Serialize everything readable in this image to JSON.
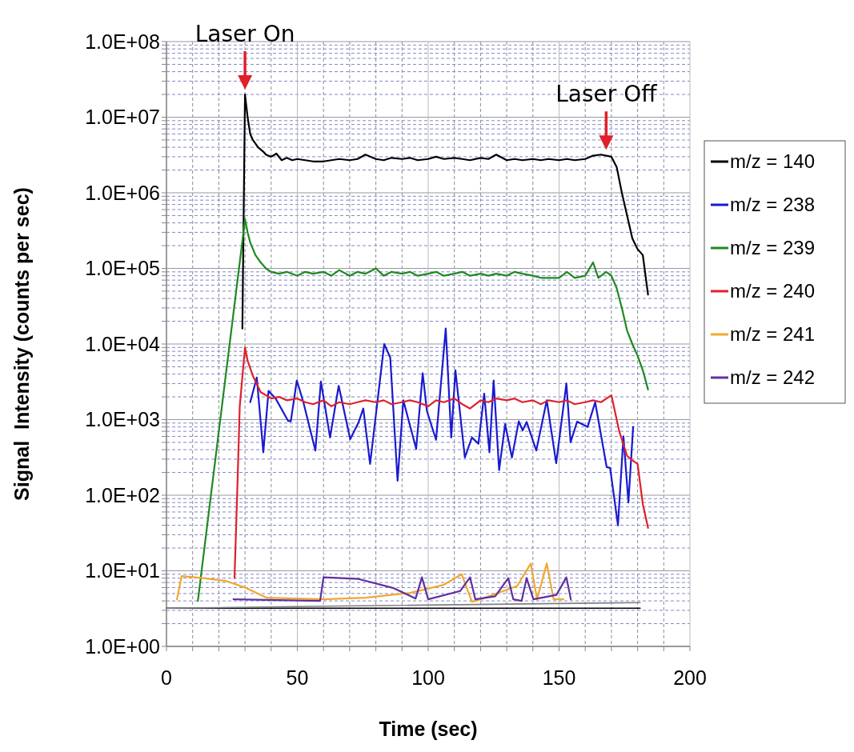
{
  "chart_data": {
    "type": "line",
    "xlabel": "Time (sec)",
    "ylabel": "Signal  Intensity (counts per sec)",
    "xlim": [
      0,
      200
    ],
    "xticks": [
      0,
      {
        "value": 10,
        "label": null
      },
      {
        "value": 20,
        "label": null
      },
      {
        "value": 30,
        "label": null
      },
      {
        "value": 40,
        "label": null
      },
      50,
      {
        "value": 60,
        "label": null
      },
      {
        "value": 70,
        "label": null
      },
      {
        "value": 80,
        "label": null
      },
      {
        "value": 90,
        "label": null
      },
      100,
      {
        "value": 110,
        "label": null
      },
      {
        "value": 120,
        "label": null
      },
      {
        "value": 130,
        "label": null
      },
      {
        "value": 140,
        "label": null
      },
      150,
      {
        "value": 160,
        "label": null
      },
      {
        "value": 170,
        "label": null
      },
      {
        "value": 180,
        "label": null
      },
      {
        "value": 190,
        "label": null
      },
      200
    ],
    "ylim": [
      1,
      100000000
    ],
    "yticks": [
      {
        "value": 1,
        "label": "1.0E+00"
      },
      {
        "value": 2,
        "label": null
      },
      {
        "value": 3,
        "label": null
      },
      {
        "value": 4,
        "label": null
      },
      {
        "value": 5,
        "label": null
      },
      {
        "value": 6,
        "label": null
      },
      {
        "value": 7,
        "label": null
      },
      {
        "value": 8,
        "label": null
      },
      {
        "value": 9,
        "label": null
      },
      {
        "value": 10,
        "label": "1.0E+01"
      },
      {
        "value": 20,
        "label": null
      },
      {
        "value": 30,
        "label": null
      },
      {
        "value": 40,
        "label": null
      },
      {
        "value": 50,
        "label": null
      },
      {
        "value": 60,
        "label": null
      },
      {
        "value": 70,
        "label": null
      },
      {
        "value": 80,
        "label": null
      },
      {
        "value": 90,
        "label": null
      },
      {
        "value": 100,
        "label": "1.0E+02"
      },
      {
        "value": 200,
        "label": null
      },
      {
        "value": 300,
        "label": null
      },
      {
        "value": 400,
        "label": null
      },
      {
        "value": 500,
        "label": null
      },
      {
        "value": 600,
        "label": null
      },
      {
        "value": 700,
        "label": null
      },
      {
        "value": 800,
        "label": null
      },
      {
        "value": 900,
        "label": null
      },
      {
        "value": 1000,
        "label": "1.0E+03"
      },
      {
        "value": 2000,
        "label": null
      },
      {
        "value": 3000,
        "label": null
      },
      {
        "value": 4000,
        "label": null
      },
      {
        "value": 5000,
        "label": null
      },
      {
        "value": 6000,
        "label": null
      },
      {
        "value": 7000,
        "label": null
      },
      {
        "value": 8000,
        "label": null
      },
      {
        "value": 9000,
        "label": null
      },
      {
        "value": 10000,
        "label": "1.0E+04"
      },
      {
        "value": 20000,
        "label": null
      },
      {
        "value": 30000,
        "label": null
      },
      {
        "value": 40000,
        "label": null
      },
      {
        "value": 50000,
        "label": null
      },
      {
        "value": 60000,
        "label": null
      },
      {
        "value": 70000,
        "label": null
      },
      {
        "value": 80000,
        "label": null
      },
      {
        "value": 90000,
        "label": null
      },
      {
        "value": 100000,
        "label": "1.0E+05"
      },
      {
        "value": 200000,
        "label": null
      },
      {
        "value": 300000,
        "label": null
      },
      {
        "value": 400000,
        "label": null
      },
      {
        "value": 500000,
        "label": null
      },
      {
        "value": 600000,
        "label": null
      },
      {
        "value": 700000,
        "label": null
      },
      {
        "value": 800000,
        "label": null
      },
      {
        "value": 900000,
        "label": null
      },
      {
        "value": 1000000,
        "label": "1.0E+06"
      },
      {
        "value": 2000000,
        "label": null
      },
      {
        "value": 3000000,
        "label": null
      },
      {
        "value": 4000000,
        "label": null
      },
      {
        "value": 5000000,
        "label": null
      },
      {
        "value": 6000000,
        "label": null
      },
      {
        "value": 7000000,
        "label": null
      },
      {
        "value": 8000000,
        "label": null
      },
      {
        "value": 9000000,
        "label": null
      },
      {
        "value": 10000000,
        "label": "1.0E+07"
      },
      {
        "value": 20000000,
        "label": null
      },
      {
        "value": 30000000,
        "label": null
      },
      {
        "value": 40000000,
        "label": null
      },
      {
        "value": 50000000,
        "label": null
      },
      {
        "value": 60000000,
        "label": null
      },
      {
        "value": 70000000,
        "label": null
      },
      {
        "value": 80000000,
        "label": null
      },
      {
        "value": 90000000,
        "label": null
      },
      {
        "value": 100000000,
        "label": "1.0E+08"
      }
    ],
    "log": "y",
    "grid": true,
    "legend": "right",
    "marker": "none",
    "line_style": "solid",
    "annotations": [
      {
        "text": "Laser On",
        "x": 30,
        "y": 20000000
      },
      {
        "text": "Laser Off",
        "x": 168,
        "y": 3200000
      }
    ],
    "series": [
      {
        "name": "m/z = 140",
        "color": "#000000",
        "x": [
          29,
          30,
          31,
          32,
          33,
          35,
          37,
          38,
          40,
          42,
          44,
          46,
          48,
          50,
          53,
          56,
          60,
          63,
          66,
          70,
          73,
          76,
          80,
          83,
          86,
          90,
          93,
          96,
          100,
          103,
          106,
          110,
          113,
          116,
          120,
          123,
          126,
          130,
          133,
          136,
          140,
          143,
          146,
          150,
          153,
          156,
          160,
          163,
          166,
          170,
          172,
          174,
          176,
          178,
          180,
          182,
          184
        ],
        "values": [
          16000,
          20000000,
          10000000,
          6000000,
          5000000,
          4000000,
          3500000,
          3200000,
          3000000,
          3300000,
          2700000,
          2900000,
          2700000,
          2800000,
          2700000,
          2600000,
          2600000,
          2700000,
          2800000,
          2700000,
          2800000,
          3200000,
          2800000,
          2700000,
          2900000,
          2800000,
          2900000,
          2700000,
          2800000,
          3000000,
          2800000,
          2900000,
          2800000,
          2700000,
          2900000,
          2800000,
          3200000,
          2700000,
          2800000,
          2700000,
          2800000,
          2700000,
          2800000,
          2700000,
          2800000,
          2700000,
          2800000,
          3100000,
          3200000,
          3000000,
          2200000,
          1000000,
          500000,
          250000,
          180000,
          150000,
          45000
        ]
      },
      {
        "name": "m/z = 238",
        "color": "#1a1ad0",
        "x": [
          32,
          34.5,
          37,
          39,
          41.7,
          46.5,
          47.5,
          49.8,
          52.3,
          56.9,
          59,
          62.5,
          65.8,
          70.2,
          73.4,
          75.2,
          77.8,
          83.2,
          85.5,
          88.3,
          90.5,
          95.4,
          97.9,
          99.5,
          103,
          106.7,
          108.8,
          110.4,
          114,
          116.7,
          119.2,
          121.4,
          123.4,
          125,
          127.1,
          129.4,
          132,
          134.6,
          136.1,
          137.6,
          141.3,
          145.3,
          148.9,
          152.8,
          154.4,
          156.9,
          160.9,
          163.8,
          168.2,
          169.5,
          172.5,
          174.6,
          176.5,
          178.3
        ],
        "values": [
          1700,
          3600,
          370,
          2400,
          1900,
          960,
          950,
          3300,
          1700,
          390,
          3200,
          580,
          2800,
          550,
          920,
          1400,
          260,
          10000,
          6600,
          155,
          1800,
          410,
          4100,
          1300,
          540,
          16000,
          580,
          4500,
          315,
          580,
          480,
          2200,
          370,
          3300,
          215,
          870,
          315,
          950,
          720,
          930,
          390,
          1800,
          265,
          3000,
          500,
          940,
          800,
          1700,
          235,
          230,
          40,
          600,
          80,
          800
        ]
      },
      {
        "name": "m/z = 239",
        "color": "#1e8a1e",
        "x": [
          12,
          20,
          29,
          30,
          31,
          32,
          34,
          36,
          38,
          40,
          43,
          46,
          50,
          53,
          56,
          60,
          63,
          66,
          70,
          73,
          76,
          80,
          83,
          86,
          90,
          93,
          96,
          100,
          103,
          106,
          110,
          113,
          116,
          120,
          123,
          126,
          130,
          133,
          136,
          140,
          143,
          146,
          150,
          153,
          156,
          160,
          163,
          165,
          168,
          170,
          172,
          174,
          176,
          178,
          180,
          182,
          184
        ],
        "values": [
          4,
          700,
          230000,
          450000,
          300000,
          220000,
          150000,
          120000,
          100000,
          90000,
          85000,
          90000,
          80000,
          90000,
          85000,
          90000,
          80000,
          95000,
          80000,
          90000,
          85000,
          100000,
          80000,
          90000,
          85000,
          90000,
          80000,
          85000,
          90000,
          80000,
          85000,
          90000,
          80000,
          85000,
          80000,
          85000,
          80000,
          90000,
          85000,
          80000,
          75000,
          75000,
          75000,
          90000,
          75000,
          80000,
          120000,
          75000,
          90000,
          80000,
          55000,
          30000,
          15000,
          10000,
          7000,
          4500,
          2500
        ]
      },
      {
        "name": "m/z = 240",
        "color": "#e0202a",
        "x": [
          26,
          27,
          28,
          30,
          31,
          33,
          36,
          38,
          40,
          43,
          46,
          50,
          53,
          56,
          60,
          63,
          66,
          70,
          73,
          76,
          80,
          83,
          86,
          90,
          93,
          96,
          100,
          103,
          106,
          110,
          113,
          116,
          120,
          123,
          126,
          130,
          133,
          136,
          140,
          143,
          146,
          150,
          153,
          156,
          160,
          163,
          166,
          170,
          173,
          176,
          178,
          180,
          182,
          184
        ],
        "values": [
          8,
          100,
          1500,
          9000,
          6000,
          3800,
          2300,
          2100,
          1900,
          2000,
          1800,
          1900,
          1700,
          1600,
          1800,
          1500,
          1700,
          1600,
          1700,
          1800,
          1700,
          1800,
          1600,
          1700,
          1800,
          1700,
          1500,
          1800,
          1700,
          1900,
          1600,
          1400,
          1800,
          1700,
          1900,
          1800,
          1900,
          1700,
          1800,
          1600,
          1800,
          1700,
          1800,
          1600,
          1700,
          1800,
          1700,
          2100,
          700,
          330,
          290,
          260,
          76,
          37
        ]
      },
      {
        "name": "m/z = 241",
        "color": "#f0a830",
        "x": [
          4,
          5.8,
          14.1,
          23,
          30.6,
          38.3,
          60,
          76,
          93.1,
          105.8,
          112.8,
          116.7,
          120,
          134,
          139.2,
          141.6,
          145.3,
          147.9,
          151.7
        ],
        "values": [
          4.2,
          8.5,
          8,
          7.3,
          5.9,
          4.4,
          4.2,
          4.4,
          5.1,
          6.5,
          9,
          3.9,
          4.2,
          6.3,
          12.5,
          4.2,
          12.5,
          4.2,
          4.2
        ]
      },
      {
        "name": "m/z = 242",
        "color": "#6030a0",
        "x": [
          25.6,
          58.7,
          60,
          73.4,
          86.8,
          95.2,
          97.6,
          100,
          112.2,
          116,
          118,
          125.6,
          130.6,
          132.5,
          135.7,
          137.6,
          140.2,
          149,
          152.8,
          154.5
        ],
        "values": [
          4.2,
          4,
          8.2,
          7.8,
          5.9,
          4.3,
          8.2,
          4.2,
          5.4,
          8.2,
          4.2,
          4.6,
          8,
          4.2,
          4,
          8,
          4.2,
          4.8,
          8.2,
          4.2
        ]
      },
      {
        "color": "#000000",
        "x": [
          0,
          181
        ],
        "values": [
          3.2,
          3.2
        ]
      },
      {
        "color": "#808080",
        "x": [
          0,
          60,
          181
        ],
        "values": [
          3.2,
          3.4,
          3.8
        ]
      }
    ]
  }
}
